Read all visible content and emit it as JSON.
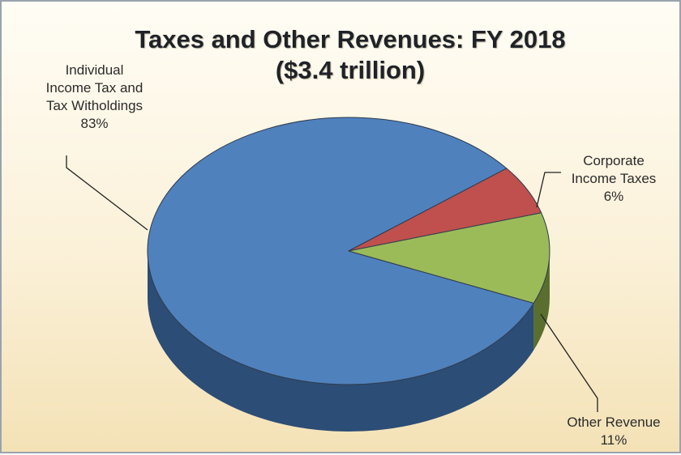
{
  "chart_data": {
    "type": "pie",
    "title": "Taxes and Other Revenues: FY 2018",
    "subtitle": "($3.4 trillion)",
    "slices": [
      {
        "key": "individual",
        "label_lines": [
          "Individual",
          "Income Tax and",
          "Tax Witholdings"
        ],
        "value_label": "83%",
        "value": 83,
        "color": "#4f81bd",
        "side_color": "#2c4d75"
      },
      {
        "key": "corporate",
        "label_lines": [
          "Corporate",
          "Income Taxes"
        ],
        "value_label": "6%",
        "value": 6,
        "color": "#c0504d",
        "side_color": "#7a2f2d"
      },
      {
        "key": "other",
        "label_lines": [
          "Other Revenue"
        ],
        "value_label": "11%",
        "value": 11,
        "color": "#9bbb59",
        "side_color": "#5a6e2f"
      }
    ]
  }
}
